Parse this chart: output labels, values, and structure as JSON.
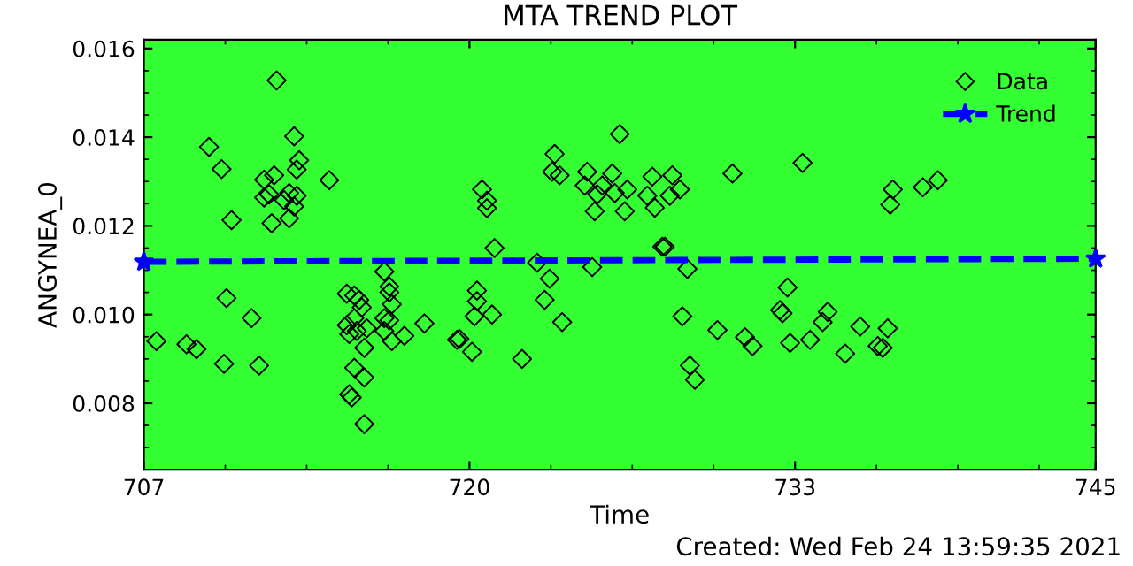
{
  "chart_data": {
    "type": "scatter",
    "title": "MTA TREND PLOT",
    "xlabel": "Time",
    "ylabel": "ANGYNEA_0",
    "annotations": [
      "Created: Wed Feb 24 13:59:35 2021"
    ],
    "xlim": [
      707,
      745
    ],
    "xticks": [
      707,
      720,
      733,
      745
    ],
    "ylim": [
      0.0065,
      0.0162
    ],
    "yticks": [
      {
        "value": 0.008,
        "label": "0.008"
      },
      {
        "value": 0.01,
        "label": "0.010"
      },
      {
        "value": 0.012,
        "label": "0.012"
      },
      {
        "value": 0.014,
        "label": "0.014"
      },
      {
        "value": 0.016,
        "label": "0.016"
      }
    ],
    "grid": false,
    "legend": "top right",
    "marker": "diamond",
    "series": [
      {
        "name": "Data",
        "color": "#000000",
        "x": [
          707.5,
          709.6,
          710.1,
          710.5,
          710.3,
          708.7,
          709.1,
          710.2,
          711.3,
          711.6,
          712.3,
          713.0,
          713.2,
          713.1,
          714.4,
          711.8,
          712.2,
          712.0,
          712.6,
          712.8,
          713.1,
          713.0,
          712.1,
          712.8,
          711.8,
          715.1,
          715.4,
          715.6,
          715.1,
          715.4,
          715.2,
          715.5,
          715.8,
          715.4,
          715.2,
          715.3,
          715.8,
          715.8,
          715.7,
          715.9,
          716.6,
          716.8,
          716.8,
          716.9,
          716.6,
          716.8,
          716.6,
          716.9,
          717.4,
          718.2,
          719.5,
          719.6,
          720.1,
          720.2,
          720.3,
          720.3,
          720.9,
          721.0,
          720.5,
          720.7,
          720.7,
          722.1,
          722.7,
          723.2,
          723.0,
          723.7,
          723.4,
          723.3,
          723.6,
          724.9,
          724.7,
          724.6,
          725.0,
          725.3,
          725.1,
          725.7,
          725.8,
          726.0,
          726.2,
          726.3,
          727.3,
          727.1,
          727.4,
          727.7,
          727.8,
          728.1,
          728.0,
          728.4,
          728.7,
          728.5,
          728.8,
          729.0,
          729.9,
          730.5,
          731.0,
          731.3,
          732.4,
          732.5,
          732.7,
          732.8,
          733.3,
          733.6,
          734.1,
          734.3,
          735.0,
          735.6,
          736.3,
          736.5,
          736.7,
          736.9,
          736.8,
          738.1,
          738.7
        ],
        "values": [
          0.0094,
          0.01378,
          0.01328,
          0.01213,
          0.01037,
          0.00933,
          0.00922,
          0.00889,
          0.00992,
          0.00885,
          0.01528,
          0.01402,
          0.01348,
          0.01327,
          0.01303,
          0.01304,
          0.01314,
          0.01271,
          0.01258,
          0.01274,
          0.01268,
          0.01244,
          0.01206,
          0.01217,
          0.01264,
          0.01047,
          0.01043,
          0.01033,
          0.00976,
          0.00992,
          0.00956,
          0.00963,
          0.00925,
          0.0088,
          0.0082,
          0.00813,
          0.00858,
          0.00753,
          0.01016,
          0.00969,
          0.01097,
          0.01063,
          0.0105,
          0.01023,
          0.00992,
          0.00987,
          0.00963,
          0.0094,
          0.00952,
          0.0098,
          0.00943,
          0.00945,
          0.00916,
          0.00996,
          0.0103,
          0.01054,
          0.01,
          0.0115,
          0.01282,
          0.01257,
          0.0124,
          0.009,
          0.01117,
          0.01081,
          0.01033,
          0.00983,
          0.01362,
          0.01322,
          0.01314,
          0.01107,
          0.01322,
          0.01291,
          0.01233,
          0.01291,
          0.01271,
          0.01318,
          0.01274,
          0.01407,
          0.01233,
          0.01282,
          0.01311,
          0.01268,
          0.01241,
          0.01153,
          0.01153,
          0.01314,
          0.01268,
          0.01282,
          0.01103,
          0.00996,
          0.00885,
          0.00853,
          0.00965,
          0.01318,
          0.00949,
          0.00929,
          0.0101,
          0.01003,
          0.01061,
          0.00936,
          0.01342,
          0.00943,
          0.00983,
          0.01006,
          0.00912,
          0.00973,
          0.00929,
          0.00925,
          0.00969,
          0.01282,
          0.01248,
          0.01287,
          0.01303
        ]
      },
      {
        "name": "Trend",
        "type": "line",
        "color": "#0000ff",
        "line_style": "dashed",
        "marker": "star",
        "x": [
          707,
          745
        ],
        "values": [
          0.01119,
          0.01126
        ]
      }
    ]
  }
}
